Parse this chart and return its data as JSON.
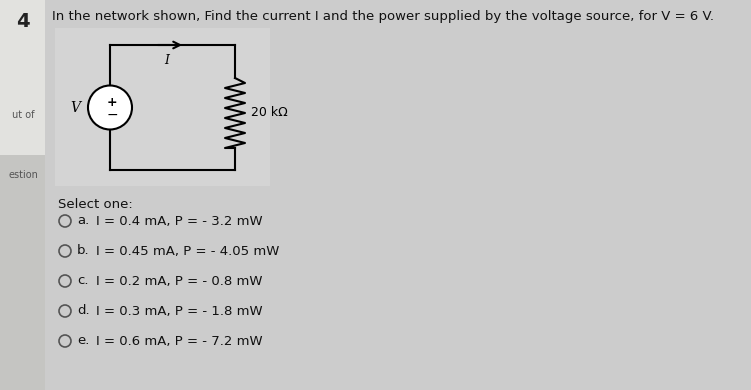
{
  "question_number": "4",
  "side_label_1": "ut of",
  "side_label_2": "estion",
  "title": "In the network shown, Find the current I and the power supplied by the voltage source, for V = 6 V.",
  "circuit_label_resistor": "20 kΩ",
  "circuit_label_current": "I",
  "select_one_text": "Select one:",
  "options": [
    {
      "letter": "a",
      "text": "I = 0.4 mA, P = - 3.2 mW"
    },
    {
      "letter": "b",
      "text": "I = 0.45 mA, P = - 4.05 mW"
    },
    {
      "letter": "c",
      "text": "I = 0.2 mA, P = - 0.8 mW"
    },
    {
      "letter": "d",
      "text": "I = 0.3 mA, P = - 1.8 mW"
    },
    {
      "letter": "e",
      "text": "I = 0.6 mA, P = - 7.2 mW"
    }
  ],
  "bg_color": "#cccccc",
  "left_panel_bg": "#e8e8e8",
  "left_panel_dark": "#888880",
  "circuit_bg": "#d8d8d8",
  "text_color": "#333333",
  "dark_text": "#111111",
  "fig_width": 7.51,
  "fig_height": 3.9,
  "dpi": 100
}
